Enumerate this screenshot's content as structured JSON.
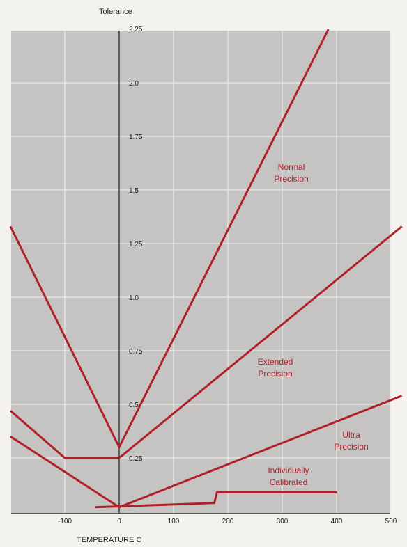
{
  "chart_data": {
    "type": "line",
    "ylabel": "Tolerance",
    "xlabel": "TEMPERATURE C",
    "xlim": [
      -200,
      520
    ],
    "ylim": [
      0,
      2.25
    ],
    "x_ticks": [
      -100,
      0,
      100,
      200,
      300,
      400,
      500
    ],
    "x_tick_labels": [
      "-100",
      "0",
      "100",
      "200",
      "300",
      "400",
      "500"
    ],
    "y_ticks": [
      0.25,
      0.5,
      0.75,
      1.0,
      1.25,
      1.5,
      1.75,
      2.0,
      2.25
    ],
    "y_tick_labels": [
      "0.25",
      "0.5",
      "0.75",
      "1.0",
      "1.25",
      "1.5",
      "1.75",
      "2.0",
      "2.25"
    ],
    "grid": true,
    "colors": {
      "plot_background": "#c6c4c2",
      "grid": "#eceae6",
      "axis": "#333333",
      "series": "#b0202a"
    },
    "series": [
      {
        "name": "Normal Precision",
        "label_lines": [
          "Normal",
          "Precision"
        ],
        "x": [
          -200,
          0,
          385
        ],
        "y": [
          1.33,
          0.3,
          2.25
        ]
      },
      {
        "name": "Extended Precision",
        "label_lines": [
          "Extended",
          "Precision"
        ],
        "x": [
          -200,
          -100,
          0,
          520
        ],
        "y": [
          0.47,
          0.25,
          0.25,
          1.33
        ]
      },
      {
        "name": "Ultra Precision",
        "label_lines": [
          "Ultra",
          "Precision"
        ],
        "x": [
          -200,
          0,
          520
        ],
        "y": [
          0.35,
          0.02,
          0.54
        ]
      },
      {
        "name": "Individually Calibrated",
        "label_lines": [
          "Individually",
          "Calibrated"
        ],
        "x": [
          -45,
          175,
          175,
          180,
          400
        ],
        "y": [
          0.02,
          0.04,
          0.04,
          0.09,
          0.09
        ]
      }
    ]
  }
}
